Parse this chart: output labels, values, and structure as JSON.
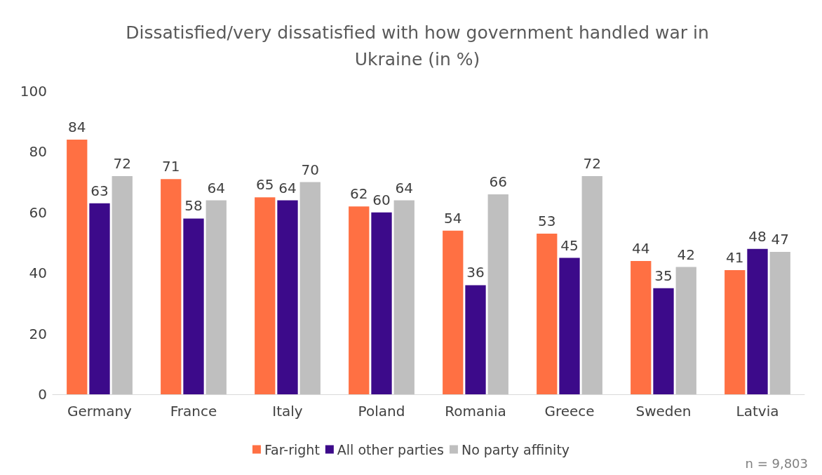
{
  "chart_data": {
    "type": "bar",
    "title": "Dissatisfied/very dissatisfied with how government handled war in\nUkraine (in %)",
    "categories": [
      "Germany",
      "France",
      "Italy",
      "Poland",
      "Romania",
      "Greece",
      "Sweden",
      "Latvia"
    ],
    "series": [
      {
        "name": "Far-right",
        "color": "#ff7043",
        "values": [
          84,
          71,
          65,
          62,
          54,
          53,
          44,
          41
        ]
      },
      {
        "name": "All other parties",
        "color": "#3c0a8a",
        "values": [
          63,
          58,
          64,
          60,
          36,
          45,
          35,
          48
        ]
      },
      {
        "name": "No party affinity",
        "color": "#bfbfbf",
        "values": [
          72,
          64,
          70,
          64,
          66,
          72,
          42,
          47
        ]
      }
    ],
    "ylim": [
      0,
      100
    ],
    "yticks": [
      0,
      20,
      40,
      60,
      80,
      100
    ],
    "grid": false,
    "legend": "bottom",
    "data_labels": true,
    "annotations": [
      "n = 9,803"
    ]
  }
}
